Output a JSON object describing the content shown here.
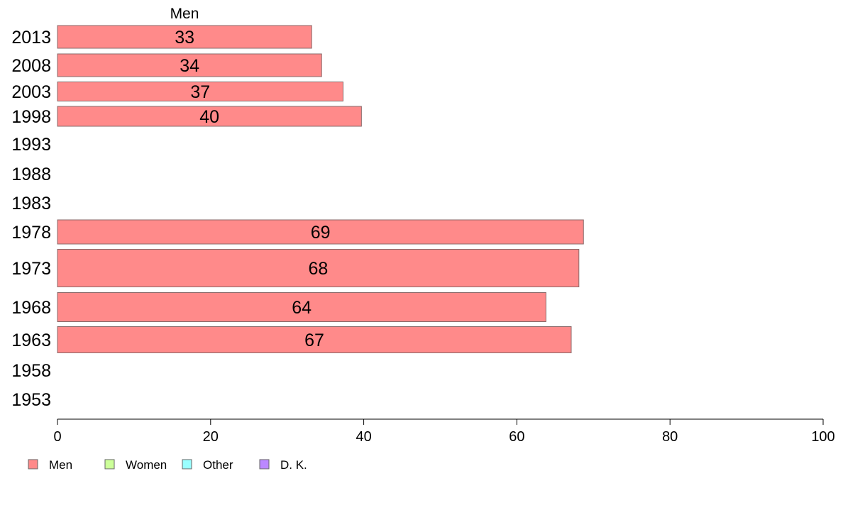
{
  "chart_data": {
    "type": "bar",
    "orientation": "horizontal",
    "series_title": "Men",
    "categories": [
      "2013",
      "2008",
      "2003",
      "1998",
      "1993",
      "1988",
      "1983",
      "1978",
      "1973",
      "1968",
      "1963",
      "1958",
      "1953"
    ],
    "series": [
      {
        "name": "Men",
        "values": [
          33,
          34,
          37,
          40,
          null,
          null,
          null,
          69,
          68,
          64,
          67,
          null,
          null
        ],
        "labels": [
          "33",
          "34",
          "37",
          "40",
          "",
          "",
          "",
          "69",
          "68",
          "64",
          "67",
          "",
          ""
        ]
      }
    ],
    "bar_values_exact": [
      33.2,
      34.5,
      37.3,
      39.7,
      null,
      null,
      null,
      68.7,
      68.1,
      63.8,
      67.1,
      null,
      null
    ],
    "xlim": [
      0,
      100
    ],
    "x_ticks": [
      "0",
      "20",
      "40",
      "60",
      "80",
      "100"
    ],
    "grid": false,
    "legend": {
      "placement": "bottom-left",
      "items": [
        {
          "label": "Men",
          "color": "#ff8a8a"
        },
        {
          "label": "Women",
          "color": "#ccff99"
        },
        {
          "label": "Other",
          "color": "#99ffff"
        },
        {
          "label": "D. K.",
          "color": "#bb88ff"
        }
      ]
    },
    "colors": {
      "bar_fill": "#ff8a8a",
      "bar_stroke": "#8a6a6a",
      "axis": "#000000"
    }
  }
}
